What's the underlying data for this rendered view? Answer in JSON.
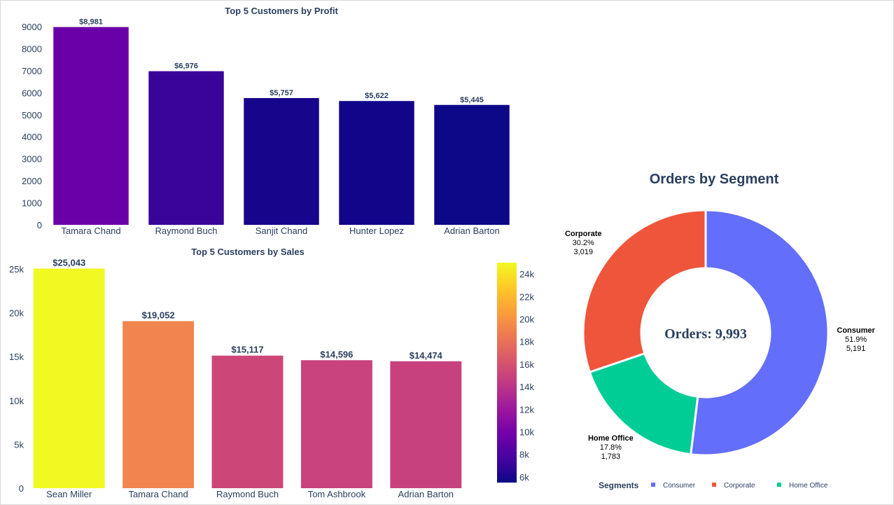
{
  "chart_data": [
    {
      "type": "bar",
      "title": "Top 5 Customers by Profit",
      "categories": [
        "Tamara Chand",
        "Raymond Buch",
        "Sanjit Chand",
        "Hunter Lopez",
        "Adrian Barton"
      ],
      "values": [
        8981,
        6976,
        5757,
        5622,
        5445
      ],
      "data_labels": [
        "$8,981",
        "$6,976",
        "$5,757",
        "$5,622",
        "$5,445"
      ],
      "ylim": [
        0,
        9000
      ],
      "yticks": [
        0,
        1000,
        2000,
        3000,
        4000,
        5000,
        6000,
        7000,
        8000,
        9000
      ],
      "ytick_labels": [
        "0",
        "1000",
        "2000",
        "3000",
        "4000",
        "5000",
        "6000",
        "7000",
        "8000",
        "9000"
      ],
      "colors": [
        "#6a00a8",
        "#3a049a",
        "#17058b",
        "#11068a",
        "#0d0887"
      ],
      "grid": false
    },
    {
      "type": "bar",
      "title": "Top 5 Customers by Sales",
      "categories": [
        "Sean Miller",
        "Tamara Chand",
        "Raymond Buch",
        "Tom Ashbrook",
        "Adrian Barton"
      ],
      "values": [
        25043,
        19052,
        15117,
        14596,
        14474
      ],
      "data_labels": [
        "$25,043",
        "$19,052",
        "$15,117",
        "$14,596",
        "$14,474"
      ],
      "ylim": [
        0,
        25000
      ],
      "yticks": [
        0,
        5000,
        10000,
        15000,
        20000,
        25000
      ],
      "ytick_labels": [
        "0",
        "5k",
        "10k",
        "15k",
        "20k",
        "25k"
      ],
      "colors": [
        "#f0f921",
        "#f0854f",
        "#cc4778",
        "#c9437e",
        "#c7417f"
      ],
      "colorbar": {
        "range": [
          5500,
          25000
        ],
        "ticks": [
          6000,
          8000,
          10000,
          12000,
          14000,
          16000,
          18000,
          20000,
          22000,
          24000
        ],
        "tick_labels": [
          "6k",
          "8k",
          "10k",
          "12k",
          "14k",
          "16k",
          "18k",
          "20k",
          "22k",
          "24k"
        ],
        "colorscale": [
          "#0d0887",
          "#46039f",
          "#7201a8",
          "#9c179e",
          "#bd3786",
          "#d8576b",
          "#ed7953",
          "#fb9f3a",
          "#fdca26",
          "#f0f921"
        ]
      },
      "grid": false
    },
    {
      "type": "pie",
      "title": "Orders by Segment",
      "hole": true,
      "center_text": "Orders: 9,993",
      "slices": [
        {
          "label": "Consumer",
          "value": 5191,
          "percent": "51.9%",
          "value_label": "5,191",
          "color": "#636efa"
        },
        {
          "label": "Home Office",
          "value": 1783,
          "percent": "17.8%",
          "value_label": "1,783",
          "color": "#00cc96"
        },
        {
          "label": "Corporate",
          "value": 3019,
          "percent": "30.2%",
          "value_label": "3,019",
          "color": "#ef553b"
        }
      ],
      "legend": {
        "title": "Segments",
        "position": "bottom",
        "items": [
          {
            "label": "Consumer",
            "color": "#636efa"
          },
          {
            "label": "Corporate",
            "color": "#ef553b"
          },
          {
            "label": "Home Office",
            "color": "#00cc96"
          }
        ]
      }
    }
  ]
}
